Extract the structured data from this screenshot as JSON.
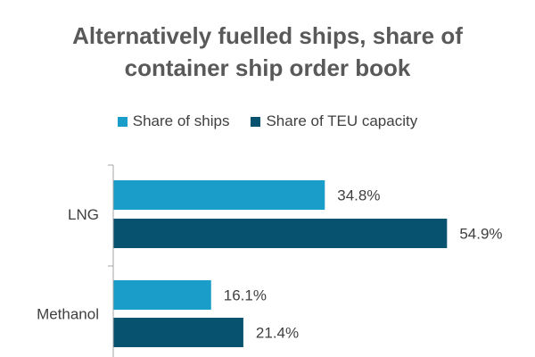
{
  "colors": {
    "share_of_ships": "#1a9ec9",
    "share_of_teu": "#07536f",
    "axis": "#a6a6a6",
    "text": "#404040",
    "title": "#595959"
  },
  "chart_data": {
    "type": "bar",
    "orientation": "horizontal",
    "title_lines": [
      "Alternatively fuelled ships, share of",
      "container ship order book"
    ],
    "categories": [
      "LNG",
      "Methanol"
    ],
    "series": [
      {
        "name": "Share of ships",
        "values": [
          34.8,
          16.1
        ],
        "labels": [
          "34.8%",
          "16.1%"
        ]
      },
      {
        "name": "Share of TEU capacity",
        "values": [
          54.9,
          21.4
        ],
        "labels": [
          "54.9%",
          "21.4%"
        ]
      }
    ],
    "xlim": [
      0,
      55
    ],
    "legend": "top",
    "grid": false
  }
}
